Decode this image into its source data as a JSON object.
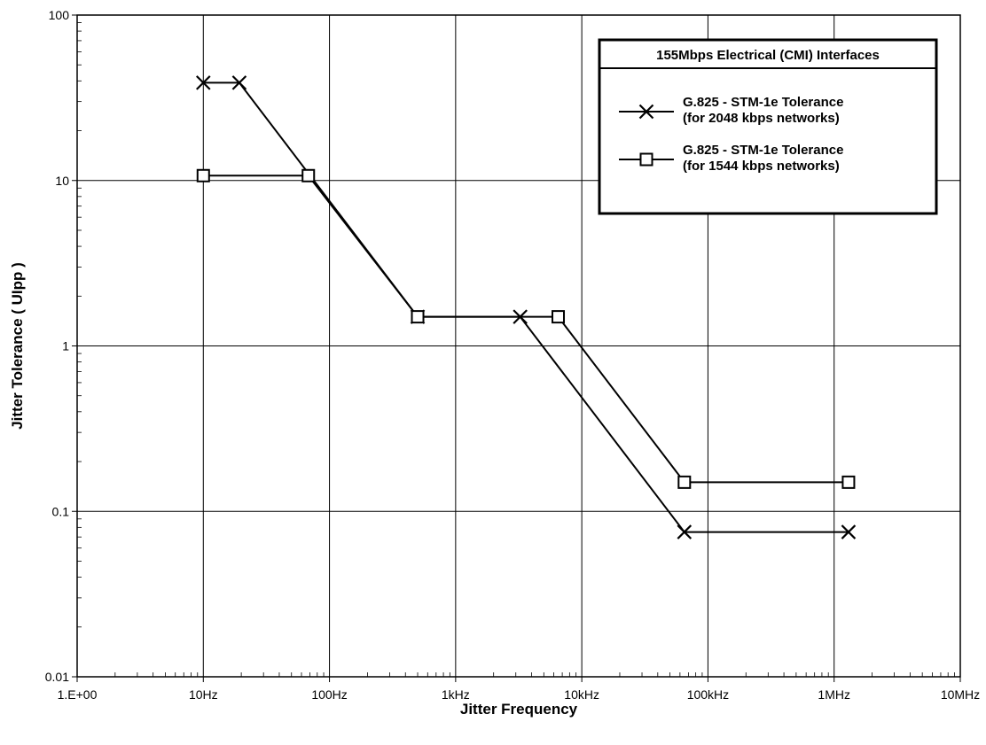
{
  "chart_data": {
    "type": "line",
    "title": "",
    "xlabel": "Jitter Frequency",
    "ylabel": "Jitter Tolerance ( UIpp )",
    "x_scale": "log",
    "y_scale": "log",
    "xlim": [
      1,
      10000000
    ],
    "ylim": [
      0.01,
      100
    ],
    "grid": true,
    "x_ticks": [
      {
        "value": 1,
        "label": "1.E+00"
      },
      {
        "value": 10,
        "label": "10Hz"
      },
      {
        "value": 100,
        "label": "100Hz"
      },
      {
        "value": 1000,
        "label": "1kHz"
      },
      {
        "value": 10000,
        "label": "10kHz"
      },
      {
        "value": 100000,
        "label": "100kHz"
      },
      {
        "value": 1000000,
        "label": "1MHz"
      },
      {
        "value": 10000000,
        "label": "10MHz"
      }
    ],
    "y_ticks": [
      {
        "value": 0.01,
        "label": "0.01"
      },
      {
        "value": 0.1,
        "label": "0.1"
      },
      {
        "value": 1,
        "label": "1"
      },
      {
        "value": 10,
        "label": "10"
      },
      {
        "value": 100,
        "label": "100"
      }
    ],
    "legend": {
      "title": "155Mbps Electrical (CMI) Interfaces",
      "placement": "top-right"
    },
    "series": [
      {
        "name": "G.825 - STM-1e Tolerance (for 2048 kbps networks)",
        "legend_lines": [
          "G.825 - STM-1e Tolerance",
          "(for 2048 kbps networks)"
        ],
        "marker": "x",
        "points": [
          [
            10,
            39
          ],
          [
            19.3,
            39
          ],
          [
            500,
            1.5
          ],
          [
            3250,
            1.5
          ],
          [
            65000,
            0.075
          ],
          [
            1300000,
            0.075
          ]
        ]
      },
      {
        "name": "G.825 - STM-1e Tolerance (for 1544 kbps networks)",
        "legend_lines": [
          "G.825 - STM-1e Tolerance",
          "(for 1544 kbps networks)"
        ],
        "marker": "square",
        "points": [
          [
            10,
            10.7
          ],
          [
            68,
            10.7
          ],
          [
            500,
            1.5
          ],
          [
            6500,
            1.5
          ],
          [
            65000,
            0.15
          ],
          [
            1300000,
            0.15
          ]
        ]
      }
    ]
  }
}
